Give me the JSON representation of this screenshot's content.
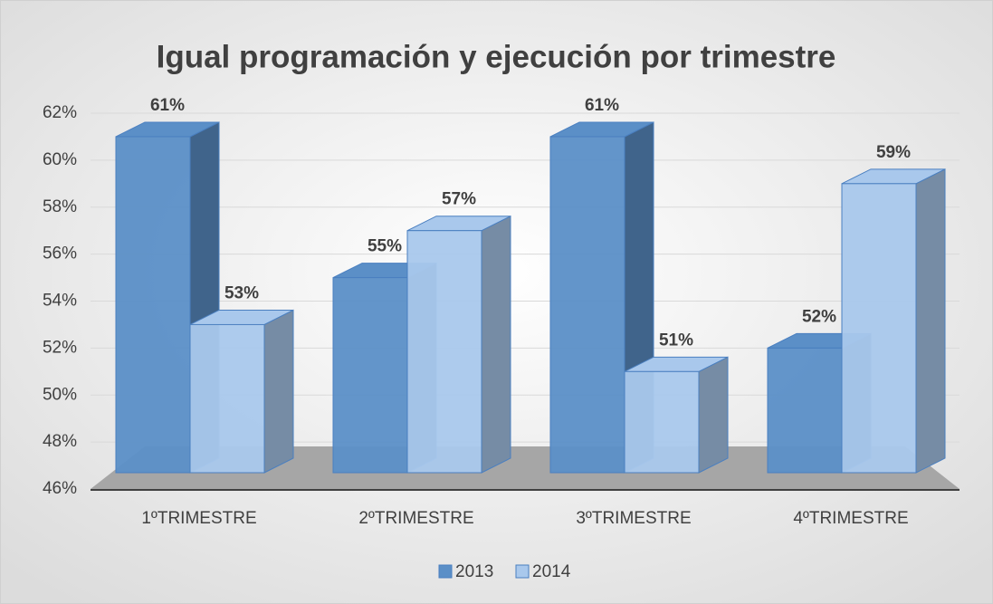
{
  "chart_data": {
    "type": "bar3d",
    "title": "Igual programación y ejecución por trimestre",
    "categories": [
      "1ºTRIMESTRE",
      "2ºTRIMESTRE",
      "3ºTRIMESTRE",
      "4ºTRIMESTRE"
    ],
    "series": [
      {
        "name": "2013",
        "color": "#5b8fc7",
        "values": [
          61,
          55,
          61,
          52
        ],
        "value_labels": [
          "61%",
          "55%",
          "61%",
          "52%"
        ]
      },
      {
        "name": "2014",
        "color": "#a9c8ec",
        "values": [
          53,
          57,
          51,
          59
        ],
        "value_labels": [
          "53%",
          "57%",
          "51%",
          "59%"
        ]
      }
    ],
    "ylim": [
      46,
      62
    ],
    "yticks": [
      {
        "value": 46,
        "label": "46%"
      },
      {
        "value": 48,
        "label": "48%"
      },
      {
        "value": 50,
        "label": "50%"
      },
      {
        "value": 52,
        "label": "52%"
      },
      {
        "value": 54,
        "label": "54%"
      },
      {
        "value": 56,
        "label": "56%"
      },
      {
        "value": 58,
        "label": "58%"
      },
      {
        "value": 60,
        "label": "60%"
      },
      {
        "value": 62,
        "label": "62%"
      }
    ],
    "grid": true
  }
}
